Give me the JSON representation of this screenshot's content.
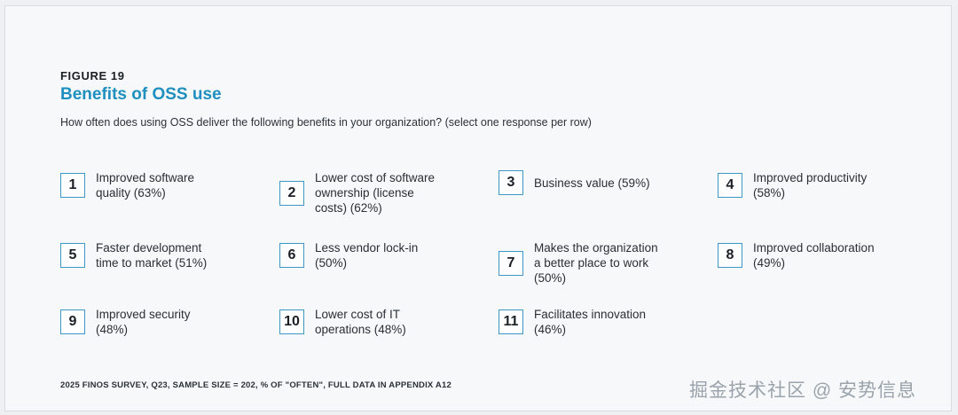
{
  "figure": {
    "label": "FIGURE 19",
    "title": "Benefits of OSS use",
    "subtitle": "How often does using OSS deliver the following benefits in your organization? (select one response per row)"
  },
  "items": [
    {
      "number": "1",
      "label": "Improved software\nquality (63%)"
    },
    {
      "number": "2",
      "label": "Lower cost of software\nownership (license\ncosts) (62%)"
    },
    {
      "number": "3",
      "label": "Business value (59%)"
    },
    {
      "number": "4",
      "label": "Improved productivity\n(58%)"
    },
    {
      "number": "5",
      "label": "Faster development\ntime to market (51%)"
    },
    {
      "number": "6",
      "label": "Less vendor lock-in\n(50%)"
    },
    {
      "number": "7",
      "label": "Makes the organization\na better place to work\n(50%)"
    },
    {
      "number": "8",
      "label": "Improved collaboration\n(49%)"
    },
    {
      "number": "9",
      "label": "Improved security\n(48%)"
    },
    {
      "number": "10",
      "label": "Lower cost of IT\noperations (48%)"
    },
    {
      "number": "11",
      "label": "Facilitates innovation\n(46%)"
    }
  ],
  "footer": "2025 FINOS SURVEY, Q23, SAMPLE SIZE = 202, % OF \"OFTEN\", FULL DATA IN APPENDIX A12",
  "watermark": "掘金技术社区 @ 安势信息",
  "colors": {
    "accent": "#1f8fbf",
    "box_border": "#3e97c4"
  }
}
